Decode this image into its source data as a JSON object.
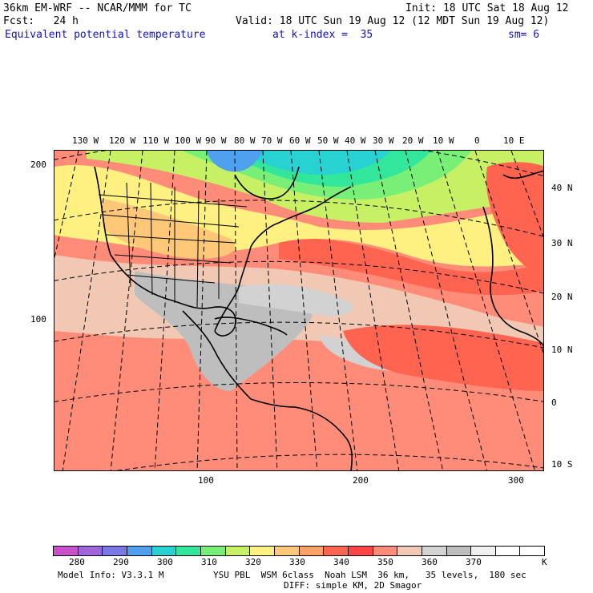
{
  "header": {
    "model_line": "36km EM-WRF -- NCAR/MMM for TC",
    "init_line": "Init: 18 UTC Sat 18 Aug 12",
    "fcst_line": "Fcst:   24 h",
    "valid_line": "Valid: 18 UTC Sun 19 Aug 12 (12 MDT Sun 19 Aug 12)",
    "field_name": "Equivalent potential temperature",
    "k_index": "at k-index =  35",
    "smoothing": "sm= 6"
  },
  "map": {
    "top_lon_labels": [
      "130 W",
      "120 W",
      "110 W",
      "100 W",
      "90 W",
      "80 W",
      "70 W",
      "60 W",
      "50 W",
      "40 W",
      "30 W",
      "20 W",
      "10 W",
      "0",
      "10 E"
    ],
    "right_lat_labels": [
      "40 N",
      "30 N",
      "20 N",
      "10 N",
      "0",
      "10 S"
    ],
    "left_grid_labels": [
      "200",
      "100"
    ],
    "bottom_grid_labels": [
      "100",
      "200",
      "300"
    ]
  },
  "colorbar": {
    "tick_labels": [
      "280",
      "290",
      "300",
      "310",
      "320",
      "330",
      "340",
      "350",
      "360",
      "370"
    ],
    "units": "K",
    "colors": [
      "#c850c8",
      "#a064dc",
      "#7878e6",
      "#50a0f0",
      "#28d2d2",
      "#32e69b",
      "#78f078",
      "#c8f064",
      "#fff082",
      "#ffc878",
      "#ffa064",
      "#ff6450",
      "#ff4646",
      "#ff8c78",
      "#f0c8b4",
      "#d2d2d2",
      "#bebebe",
      "#f0f0f0",
      "#ffffff",
      "#ffffff"
    ]
  },
  "footer": {
    "model_info": "Model Info: V3.3.1 M",
    "physics": "YSU PBL  WSM 6class  Noah LSM  36 km,   35 levels,  180 sec",
    "diffusion": "DIFF: simple KM, 2D Smagor"
  }
}
